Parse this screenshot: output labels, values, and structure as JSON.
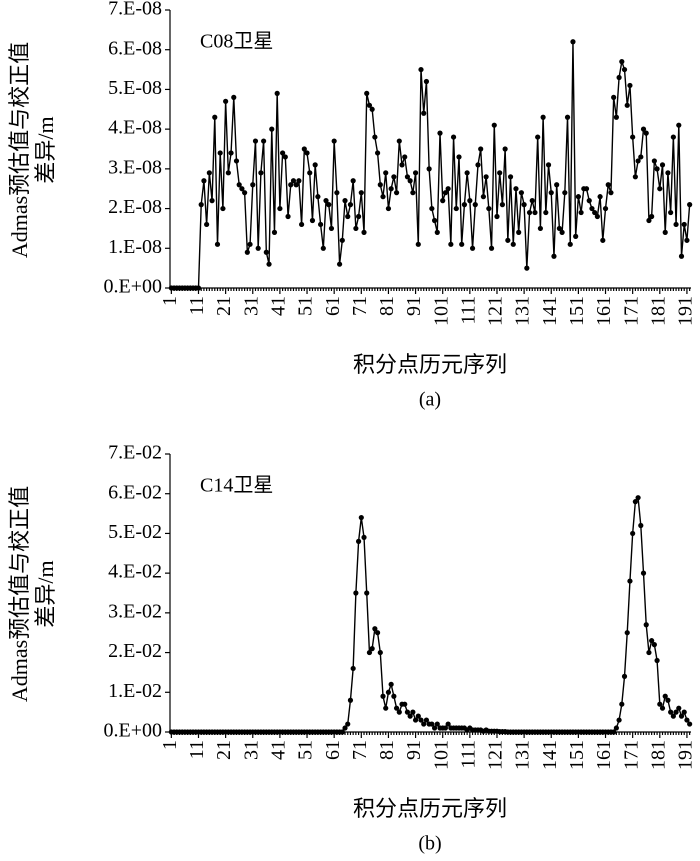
{
  "chart_data": [
    {
      "type": "line",
      "annotation": "C08卫星",
      "xlabel": "积分点历元序列",
      "ylabel": [
        "Admas预估值与校正值",
        "差异/m"
      ],
      "caption": "(a)",
      "color": "#000000",
      "marker": true,
      "xlim": [
        0.5,
        192.5
      ],
      "ylim": [
        0,
        7e-08
      ],
      "xticks": [
        1,
        11,
        21,
        31,
        41,
        51,
        61,
        71,
        81,
        91,
        101,
        111,
        121,
        131,
        141,
        151,
        161,
        171,
        181,
        191
      ],
      "yticks": [
        {
          "value": 0,
          "label": "0.E+00"
        },
        {
          "value": 1e-08,
          "label": "1.E-08"
        },
        {
          "value": 2e-08,
          "label": "2.E-08"
        },
        {
          "value": 3e-08,
          "label": "3.E-08"
        },
        {
          "value": 4e-08,
          "label": "4.E-08"
        },
        {
          "value": 5e-08,
          "label": "5.E-08"
        },
        {
          "value": 6e-08,
          "label": "6.E-08"
        },
        {
          "value": 7e-08,
          "label": "7.E-08"
        }
      ],
      "x": [
        1,
        2,
        3,
        4,
        5,
        6,
        7,
        8,
        9,
        10,
        11,
        12,
        13,
        14,
        15,
        16,
        17,
        18,
        19,
        20,
        21,
        22,
        23,
        24,
        25,
        26,
        27,
        28,
        29,
        30,
        31,
        32,
        33,
        34,
        35,
        36,
        37,
        38,
        39,
        40,
        41,
        42,
        43,
        44,
        45,
        46,
        47,
        48,
        49,
        50,
        51,
        52,
        53,
        54,
        55,
        56,
        57,
        58,
        59,
        60,
        61,
        62,
        63,
        64,
        65,
        66,
        67,
        68,
        69,
        70,
        71,
        72,
        73,
        74,
        75,
        76,
        77,
        78,
        79,
        80,
        81,
        82,
        83,
        84,
        85,
        86,
        87,
        88,
        89,
        90,
        91,
        92,
        93,
        94,
        95,
        96,
        97,
        98,
        99,
        100,
        101,
        102,
        103,
        104,
        105,
        106,
        107,
        108,
        109,
        110,
        111,
        112,
        113,
        114,
        115,
        116,
        117,
        118,
        119,
        120,
        121,
        122,
        123,
        124,
        125,
        126,
        127,
        128,
        129,
        130,
        131,
        132,
        133,
        134,
        135,
        136,
        137,
        138,
        139,
        140,
        141,
        142,
        143,
        144,
        145,
        146,
        147,
        148,
        149,
        150,
        151,
        152,
        153,
        154,
        155,
        156,
        157,
        158,
        159,
        160,
        161,
        162,
        163,
        164,
        165,
        166,
        167,
        168,
        169,
        170,
        171,
        172,
        173,
        174,
        175,
        176,
        177,
        178,
        179,
        180,
        181,
        182,
        183,
        184,
        185,
        186,
        187,
        188,
        189,
        190,
        191,
        192
      ],
      "values": [
        0,
        0,
        0,
        0,
        0,
        0,
        0,
        0,
        0,
        0,
        0,
        2.1e-08,
        2.7e-08,
        1.6e-08,
        2.9e-08,
        2.2e-08,
        4.3e-08,
        1.1e-08,
        3.4e-08,
        2e-08,
        4.7e-08,
        2.9e-08,
        3.4e-08,
        4.8e-08,
        3.2e-08,
        2.6e-08,
        2.5e-08,
        2.4e-08,
        9e-09,
        1.1e-08,
        2.6e-08,
        3.7e-08,
        1e-08,
        2.9e-08,
        3.7e-08,
        9e-09,
        6e-09,
        4e-08,
        1.4e-08,
        4.9e-08,
        2e-08,
        3.4e-08,
        3.3e-08,
        1.8e-08,
        2.6e-08,
        2.7e-08,
        2.6e-08,
        2.7e-08,
        1.6e-08,
        3.5e-08,
        3.4e-08,
        2.9e-08,
        1.7e-08,
        3.1e-08,
        2.3e-08,
        1.6e-08,
        1e-08,
        2.2e-08,
        2.1e-08,
        1.5e-08,
        3.7e-08,
        2.4e-08,
        6e-09,
        1.2e-08,
        2.2e-08,
        1.8e-08,
        2.1e-08,
        2.7e-08,
        1.5e-08,
        1.8e-08,
        2.4e-08,
        1.4e-08,
        4.9e-08,
        4.6e-08,
        4.5e-08,
        3.8e-08,
        3.4e-08,
        2.6e-08,
        2.3e-08,
        2.9e-08,
        2e-08,
        2.5e-08,
        2.8e-08,
        2.4e-08,
        3.7e-08,
        3.1e-08,
        3.3e-08,
        2.8e-08,
        2.7e-08,
        2.4e-08,
        2.9e-08,
        1.1e-08,
        5.5e-08,
        4.4e-08,
        5.2e-08,
        3e-08,
        2e-08,
        1.7e-08,
        1.4e-08,
        3.9e-08,
        2.2e-08,
        2.4e-08,
        2.5e-08,
        1.1e-08,
        3.8e-08,
        2e-08,
        3.3e-08,
        1.1e-08,
        2.1e-08,
        2.9e-08,
        2.2e-08,
        1e-08,
        2.1e-08,
        3.1e-08,
        3.5e-08,
        2.3e-08,
        2.8e-08,
        2e-08,
        1e-08,
        4.1e-08,
        1.8e-08,
        2.9e-08,
        2.1e-08,
        3.5e-08,
        1.2e-08,
        2.8e-08,
        1.1e-08,
        2.5e-08,
        1.4e-08,
        2.4e-08,
        2.1e-08,
        5e-09,
        1.9e-08,
        2.2e-08,
        1.9e-08,
        3.8e-08,
        1.5e-08,
        4.3e-08,
        1.9e-08,
        3.1e-08,
        2.4e-08,
        8e-09,
        2.6e-08,
        1.5e-08,
        1.4e-08,
        2.4e-08,
        4.3e-08,
        1.1e-08,
        6.2e-08,
        1.3e-08,
        2.3e-08,
        1.9e-08,
        2.5e-08,
        2.5e-08,
        2.2e-08,
        2e-08,
        1.9e-08,
        1.8e-08,
        2.3e-08,
        1.2e-08,
        2e-08,
        2.6e-08,
        2.4e-08,
        4.8e-08,
        4.3e-08,
        5.3e-08,
        5.7e-08,
        5.5e-08,
        4.6e-08,
        5.1e-08,
        3.8e-08,
        2.8e-08,
        3.2e-08,
        3.3e-08,
        4e-08,
        3.9e-08,
        1.7e-08,
        1.8e-08,
        3.2e-08,
        3e-08,
        2.5e-08,
        3.1e-08,
        1.4e-08,
        2.9e-08,
        1.9e-08,
        3.8e-08,
        1.6e-08,
        4.1e-08,
        8e-09,
        1.6e-08,
        1.2e-08,
        2.1e-08
      ]
    },
    {
      "type": "line",
      "annotation": "C14卫星",
      "xlabel": "积分点历元序列",
      "ylabel": [
        "Admas预估值与校正值",
        "差异/m"
      ],
      "caption": "(b)",
      "color": "#000000",
      "marker": true,
      "xlim": [
        0.5,
        192.5
      ],
      "ylim": [
        0,
        0.07
      ],
      "xticks": [
        1,
        11,
        21,
        31,
        41,
        51,
        61,
        71,
        81,
        91,
        101,
        111,
        121,
        131,
        141,
        151,
        161,
        171,
        181,
        191
      ],
      "yticks": [
        {
          "value": 0,
          "label": "0.E+00"
        },
        {
          "value": 0.01,
          "label": "1.E-02"
        },
        {
          "value": 0.02,
          "label": "2.E-02"
        },
        {
          "value": 0.03,
          "label": "3.E-02"
        },
        {
          "value": 0.04,
          "label": "4.E-02"
        },
        {
          "value": 0.05,
          "label": "5.E-02"
        },
        {
          "value": 0.06,
          "label": "6.E-02"
        },
        {
          "value": 0.07,
          "label": "7.E-02"
        }
      ],
      "x": [
        1,
        2,
        3,
        4,
        5,
        6,
        7,
        8,
        9,
        10,
        11,
        12,
        13,
        14,
        15,
        16,
        17,
        18,
        19,
        20,
        21,
        22,
        23,
        24,
        25,
        26,
        27,
        28,
        29,
        30,
        31,
        32,
        33,
        34,
        35,
        36,
        37,
        38,
        39,
        40,
        41,
        42,
        43,
        44,
        45,
        46,
        47,
        48,
        49,
        50,
        51,
        52,
        53,
        54,
        55,
        56,
        57,
        58,
        59,
        60,
        61,
        62,
        63,
        64,
        65,
        66,
        67,
        68,
        69,
        70,
        71,
        72,
        73,
        74,
        75,
        76,
        77,
        78,
        79,
        80,
        81,
        82,
        83,
        84,
        85,
        86,
        87,
        88,
        89,
        90,
        91,
        92,
        93,
        94,
        95,
        96,
        97,
        98,
        99,
        100,
        101,
        102,
        103,
        104,
        105,
        106,
        107,
        108,
        109,
        110,
        111,
        112,
        113,
        114,
        115,
        116,
        117,
        118,
        119,
        120,
        121,
        122,
        123,
        124,
        125,
        126,
        127,
        128,
        129,
        130,
        131,
        132,
        133,
        134,
        135,
        136,
        137,
        138,
        139,
        140,
        141,
        142,
        143,
        144,
        145,
        146,
        147,
        148,
        149,
        150,
        151,
        152,
        153,
        154,
        155,
        156,
        157,
        158,
        159,
        160,
        161,
        162,
        163,
        164,
        165,
        166,
        167,
        168,
        169,
        170,
        171,
        172,
        173,
        174,
        175,
        176,
        177,
        178,
        179,
        180,
        181,
        182,
        183,
        184,
        185,
        186,
        187,
        188,
        189,
        190,
        191,
        192
      ],
      "values": [
        0,
        0,
        0,
        0,
        0,
        0,
        0,
        0,
        0,
        0,
        0,
        0,
        0,
        0,
        0,
        0,
        0,
        0,
        0,
        0,
        0,
        0,
        0,
        0,
        0,
        0,
        0,
        0,
        0,
        0,
        0,
        0,
        0,
        0,
        0,
        0,
        0,
        0,
        0,
        0,
        0,
        0,
        0,
        0,
        0,
        0,
        0,
        0,
        0,
        0,
        0,
        0,
        0,
        0,
        0,
        0,
        0,
        0,
        0,
        0,
        0,
        0,
        0,
        0,
        0.001,
        0.002,
        0.008,
        0.016,
        0.035,
        0.048,
        0.054,
        0.049,
        0.035,
        0.02,
        0.021,
        0.026,
        0.025,
        0.02,
        0.009,
        0.006,
        0.01,
        0.012,
        0.009,
        0.006,
        0.005,
        0.007,
        0.007,
        0.005,
        0.004,
        0.005,
        0.003,
        0.004,
        0.003,
        0.002,
        0.003,
        0.002,
        0.002,
        0.001,
        0.002,
        0.001,
        0.001,
        0.001,
        0.002,
        0.001,
        0.001,
        0.001,
        0.001,
        0.001,
        0.001,
        0.0005,
        0.001,
        0.0005,
        0.0005,
        0.0005,
        0.0005,
        0.0002,
        0.0005,
        0.0002,
        0.0002,
        0.0002,
        0.0002,
        0.0001,
        0.0001,
        0.0001,
        0,
        0,
        0,
        0,
        0,
        0,
        0,
        0,
        0,
        0,
        0,
        0,
        0,
        0,
        0,
        0,
        0,
        0,
        0,
        0,
        0,
        0,
        0,
        0,
        0,
        0,
        0,
        0,
        0,
        0,
        0,
        0,
        0,
        0,
        0,
        0,
        0,
        0,
        0,
        0,
        0.001,
        0.003,
        0.007,
        0.014,
        0.025,
        0.038,
        0.05,
        0.058,
        0.059,
        0.052,
        0.04,
        0.027,
        0.02,
        0.023,
        0.022,
        0.018,
        0.007,
        0.006,
        0.009,
        0.008,
        0.005,
        0.004,
        0.005,
        0.006,
        0.004,
        0.005,
        0.003,
        0.002
      ]
    }
  ]
}
